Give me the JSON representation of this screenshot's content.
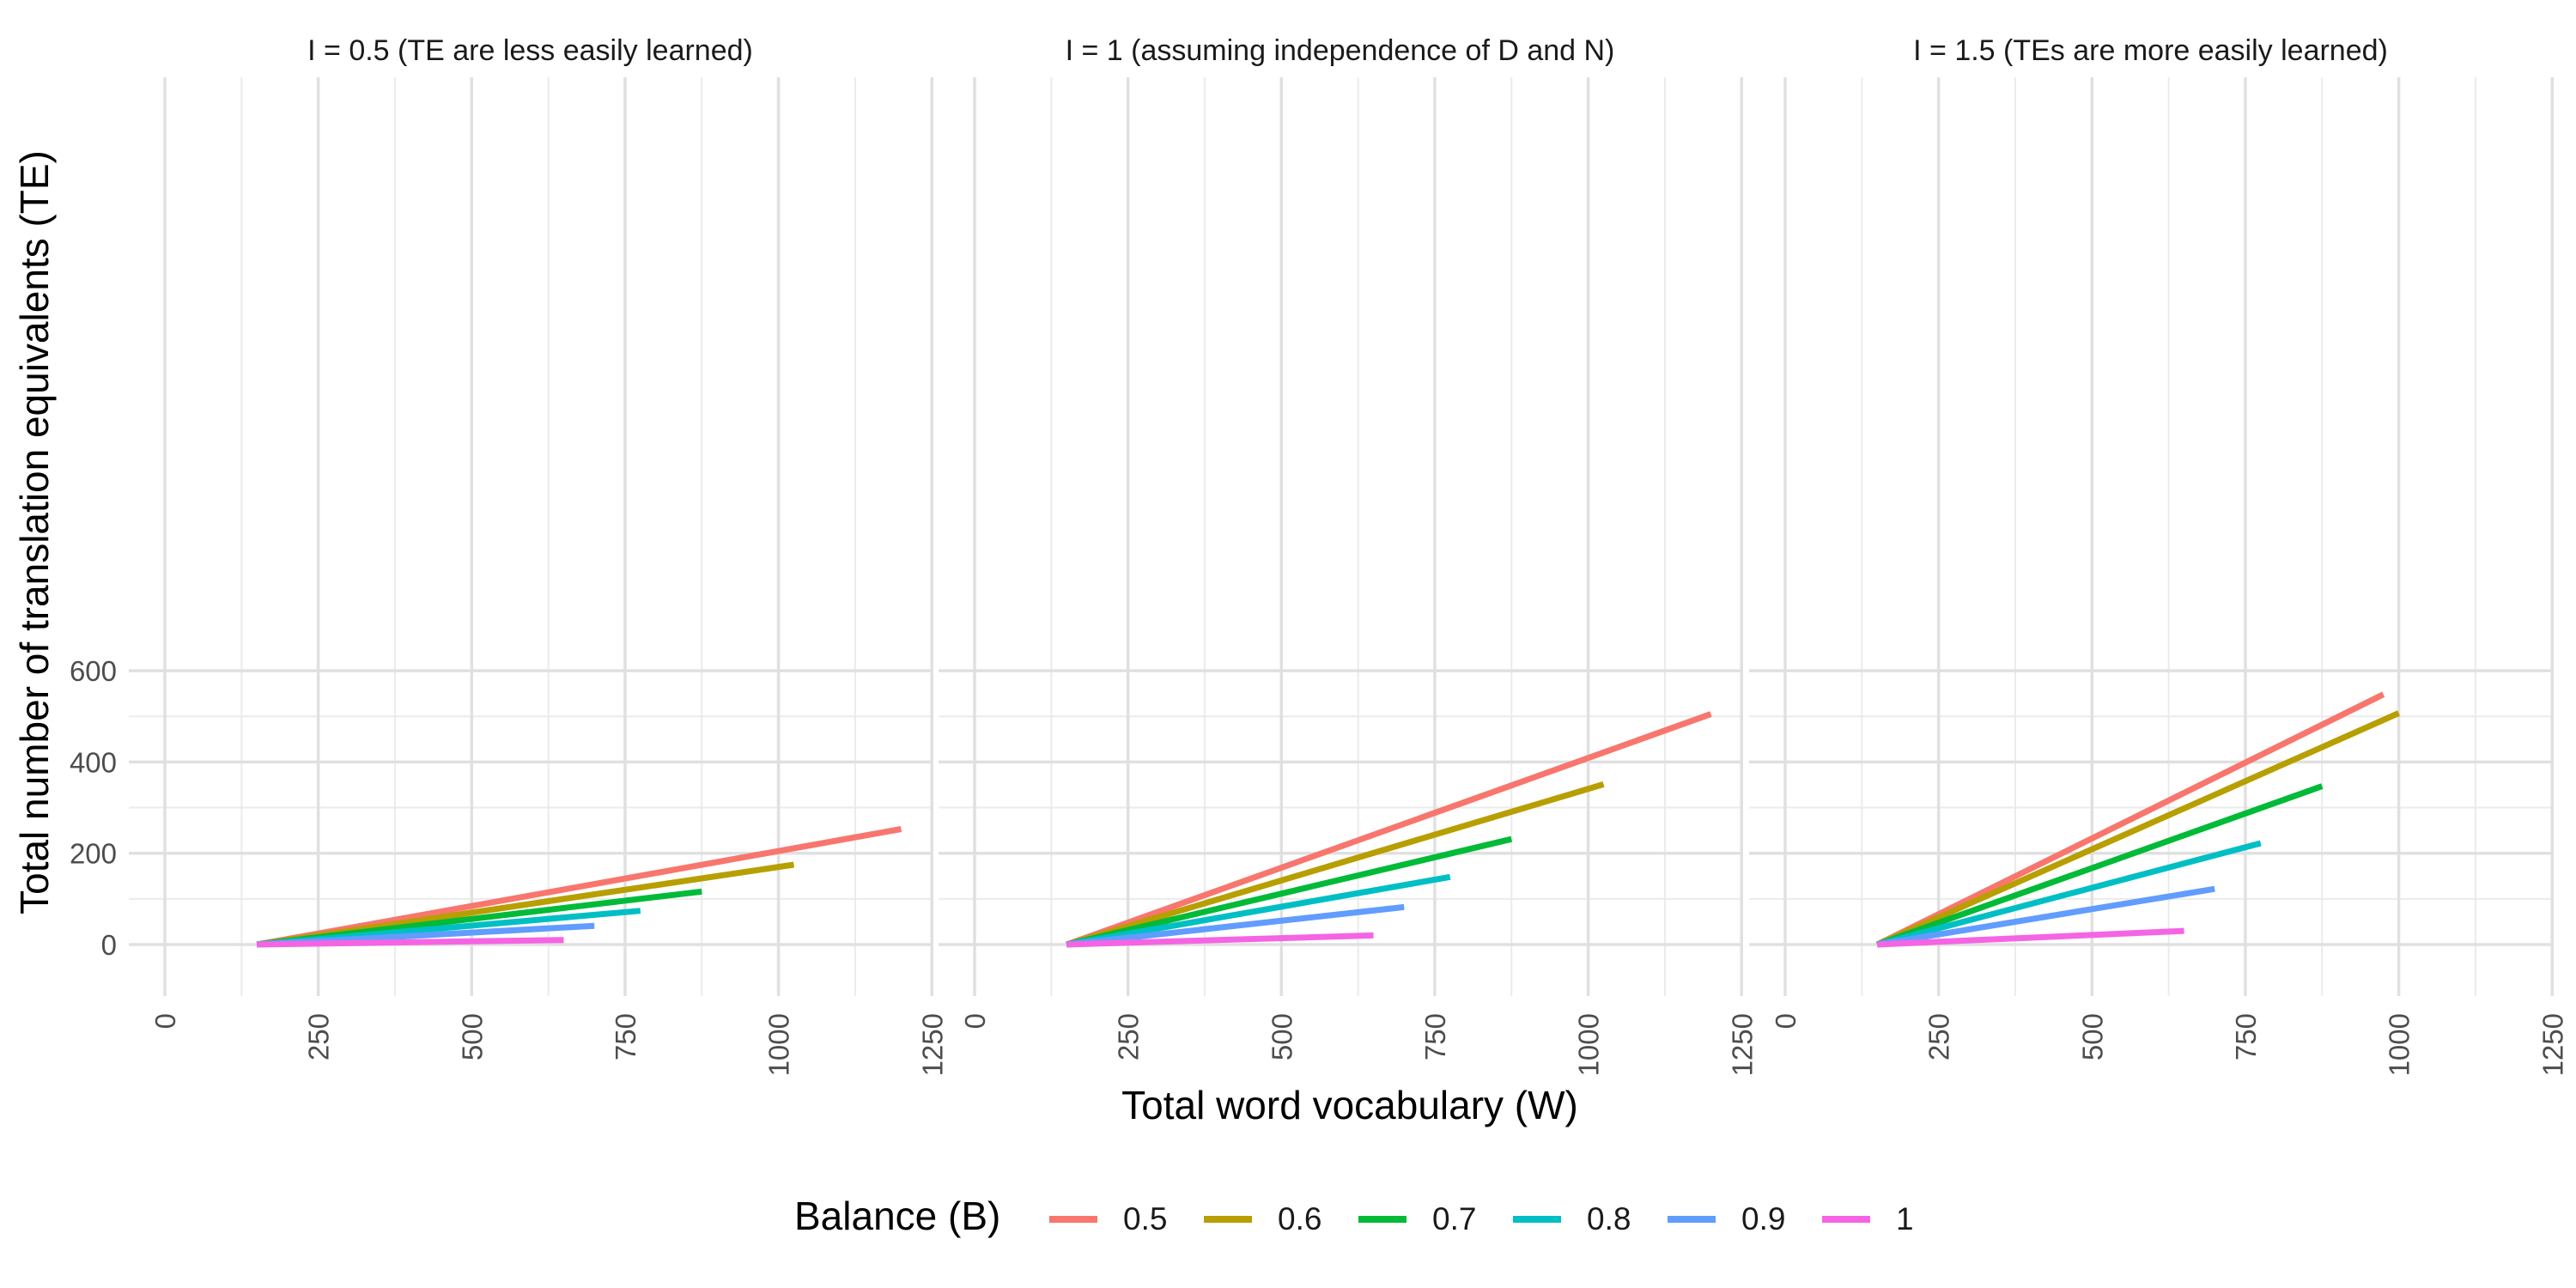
{
  "chart_data": {
    "type": "line",
    "xlabel": "Total word vocabulary (W)",
    "ylabel": "Total number of translation equivalents (TE)",
    "xlim": [
      0,
      1250
    ],
    "ylim": [
      0,
      600
    ],
    "x_ticks": [
      0,
      250,
      500,
      750,
      1000,
      1250
    ],
    "y_ticks": [
      0,
      200,
      400,
      600
    ],
    "grid": true,
    "legend_position": "bottom",
    "legend": {
      "title": "Balance (B)",
      "entries": [
        "0.5",
        "0.6",
        "0.7",
        "0.8",
        "0.9",
        "1"
      ]
    },
    "colors": {
      "0.5": "#F8766D",
      "0.6": "#B79F00",
      "0.7": "#00BA38",
      "0.8": "#00BFC4",
      "0.9": "#619CFF",
      "1": "#F564E3"
    },
    "panels": [
      {
        "title": "I = 0.5 (TE are less easily learned)",
        "series": [
          {
            "name": "0.5",
            "x": [
              150,
              1200
            ],
            "y": [
              0,
              253
            ]
          },
          {
            "name": "0.6",
            "x": [
              150,
              1025
            ],
            "y": [
              0,
              175
            ]
          },
          {
            "name": "0.7",
            "x": [
              150,
              875
            ],
            "y": [
              0,
              116
            ]
          },
          {
            "name": "0.8",
            "x": [
              150,
              775
            ],
            "y": [
              0,
              74
            ]
          },
          {
            "name": "0.9",
            "x": [
              150,
              700
            ],
            "y": [
              0,
              41
            ]
          },
          {
            "name": "1",
            "x": [
              150,
              650
            ],
            "y": [
              0,
              10
            ]
          }
        ]
      },
      {
        "title": "I = 1 (assuming independence of D and N)",
        "series": [
          {
            "name": "0.5",
            "x": [
              150,
              1200
            ],
            "y": [
              0,
              505
            ]
          },
          {
            "name": "0.6",
            "x": [
              150,
              1025
            ],
            "y": [
              0,
              351
            ]
          },
          {
            "name": "0.7",
            "x": [
              150,
              875
            ],
            "y": [
              0,
              231
            ]
          },
          {
            "name": "0.8",
            "x": [
              150,
              775
            ],
            "y": [
              0,
              148
            ]
          },
          {
            "name": "0.9",
            "x": [
              150,
              700
            ],
            "y": [
              0,
              82
            ]
          },
          {
            "name": "1",
            "x": [
              150,
              650
            ],
            "y": [
              0,
              20
            ]
          }
        ]
      },
      {
        "title": "I = 1.5 (TEs are more easily learned)",
        "series": [
          {
            "name": "0.5",
            "x": [
              150,
              975
            ],
            "y": [
              0,
              548
            ]
          },
          {
            "name": "0.6",
            "x": [
              150,
              1000
            ],
            "y": [
              0,
              507
            ]
          },
          {
            "name": "0.7",
            "x": [
              150,
              875
            ],
            "y": [
              0,
              347
            ]
          },
          {
            "name": "0.8",
            "x": [
              150,
              775
            ],
            "y": [
              0,
              222
            ]
          },
          {
            "name": "0.9",
            "x": [
              150,
              700
            ],
            "y": [
              0,
              122
            ]
          },
          {
            "name": "1",
            "x": [
              150,
              650
            ],
            "y": [
              0,
              30
            ]
          }
        ]
      }
    ]
  }
}
